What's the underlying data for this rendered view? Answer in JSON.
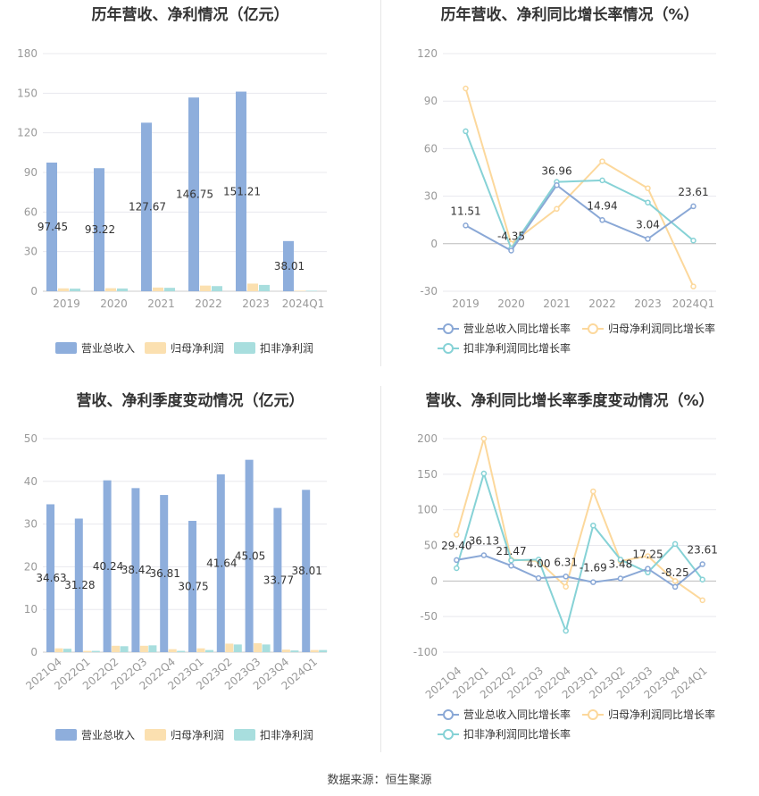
{
  "source": "数据来源：恒生聚源",
  "colors": {
    "revenue_bar": "#8eaedc",
    "netprofit_bar": "#fbe0b0",
    "deducted_bar": "#a8dede",
    "revenue_line": "#8aa8d6",
    "netprofit_line": "#fcd89c",
    "deducted_line": "#86d2d6",
    "grid": "#e8e8ee",
    "axis_text": "#999999"
  },
  "chart_data": [
    {
      "type": "bar",
      "title": "历年营收、净利情况（亿元）",
      "categories": [
        "2019",
        "2020",
        "2021",
        "2022",
        "2023",
        "2024Q1"
      ],
      "ylim": [
        0,
        180
      ],
      "yticks": [
        0,
        30,
        60,
        90,
        120,
        150,
        180
      ],
      "series": [
        {
          "name": "营业总收入",
          "values": [
            97.45,
            93.22,
            127.67,
            146.75,
            151.21,
            38.01
          ]
        },
        {
          "name": "归母净利润",
          "values": [
            2.2,
            2.3,
            2.8,
            4.3,
            5.8,
            0.4
          ]
        },
        {
          "name": "扣非净利润",
          "values": [
            2.0,
            2.1,
            2.6,
            3.9,
            4.8,
            0.4
          ]
        }
      ],
      "data_labels": [
        "97.45",
        "93.22",
        "127.67",
        "146.75",
        "151.21",
        "38.01"
      ],
      "legend_position": "bottom"
    },
    {
      "type": "line",
      "title": "历年营收、净利同比增长率情况（%）",
      "categories": [
        "2019",
        "2020",
        "2021",
        "2022",
        "2023",
        "2024Q1"
      ],
      "ylim": [
        -30,
        120
      ],
      "yticks": [
        -30,
        0,
        30,
        60,
        90,
        120
      ],
      "series": [
        {
          "name": "营业总收入同比增长率",
          "values": [
            11.51,
            -4.35,
            36.96,
            14.94,
            3.04,
            23.61
          ]
        },
        {
          "name": "归母净利润同比增长率",
          "values": [
            98,
            0,
            22,
            52,
            35,
            -27
          ]
        },
        {
          "name": "扣非净利润同比增长率",
          "values": [
            71,
            -3,
            39,
            40,
            26,
            2
          ]
        }
      ],
      "data_labels": [
        "11.51",
        "-4.35",
        "36.96",
        "14.94",
        "3.04",
        "23.61"
      ],
      "legend_position": "bottom"
    },
    {
      "type": "bar",
      "title": "营收、净利季度变动情况（亿元）",
      "categories": [
        "2021Q4",
        "2022Q1",
        "2022Q2",
        "2022Q3",
        "2022Q4",
        "2023Q1",
        "2023Q2",
        "2023Q3",
        "2023Q4",
        "2024Q1"
      ],
      "ylim": [
        0,
        50
      ],
      "yticks": [
        0,
        10,
        20,
        30,
        40,
        50
      ],
      "series": [
        {
          "name": "营业总收入",
          "values": [
            34.63,
            31.28,
            40.24,
            38.42,
            36.81,
            30.75,
            41.64,
            45.05,
            33.77,
            38.01
          ]
        },
        {
          "name": "归母净利润",
          "values": [
            0.9,
            0.3,
            1.5,
            1.5,
            0.7,
            0.9,
            2.0,
            2.1,
            0.6,
            0.5
          ]
        },
        {
          "name": "扣非净利润",
          "values": [
            0.8,
            0.3,
            1.4,
            1.6,
            0.3,
            0.5,
            1.8,
            1.8,
            0.4,
            0.5
          ]
        }
      ],
      "data_labels": [
        "34.63",
        "31.28",
        "40.24",
        "38.42",
        "36.81",
        "30.75",
        "41.64",
        "45.05",
        "33.77",
        "38.01"
      ],
      "legend_position": "bottom"
    },
    {
      "type": "line",
      "title": "营收、净利同比增长率季度变动情况（%）",
      "categories": [
        "2021Q4",
        "2022Q1",
        "2022Q2",
        "2022Q3",
        "2022Q4",
        "2023Q1",
        "2023Q2",
        "2023Q3",
        "2023Q4",
        "2024Q1"
      ],
      "ylim": [
        -100,
        200
      ],
      "yticks": [
        -100,
        -50,
        0,
        50,
        100,
        150,
        200
      ],
      "series": [
        {
          "name": "营业总收入同比增长率",
          "values": [
            29.4,
            36.13,
            21.47,
            4.0,
            6.31,
            -1.69,
            3.48,
            17.25,
            -8.25,
            23.61
          ]
        },
        {
          "name": "归母净利润同比增长率",
          "values": [
            65,
            200,
            30,
            28,
            -8,
            126,
            28,
            35,
            0,
            -27
          ]
        },
        {
          "name": "扣非净利润同比增长率",
          "values": [
            18,
            151,
            29,
            30,
            -70,
            78,
            30,
            12,
            52,
            2
          ]
        }
      ],
      "data_labels": [
        "29.40",
        "36.13",
        "21.47",
        "4.00",
        "6.31",
        "-1.69",
        "3.48",
        "17.25",
        "-8.25",
        "23.61"
      ],
      "legend_position": "bottom"
    }
  ]
}
